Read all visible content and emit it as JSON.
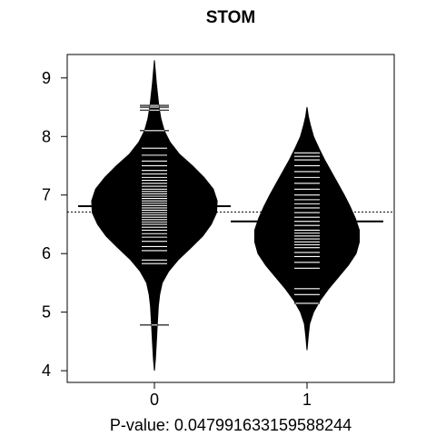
{
  "chart_data": {
    "type": "beanplot",
    "title": "STOM",
    "caption": "P-value: 0.047991633159588244",
    "xlabel": "",
    "ylabel": "",
    "ylim": [
      3.8,
      9.4
    ],
    "yticks": [
      4,
      5,
      6,
      7,
      8,
      9
    ],
    "grid": false,
    "overall_mean": 6.71,
    "groups": [
      {
        "category": "0",
        "mean": 6.81,
        "min": 4.0,
        "max": 9.3,
        "density": [
          [
            4.0,
            0.0
          ],
          [
            4.2,
            0.015
          ],
          [
            4.5,
            0.03
          ],
          [
            4.8,
            0.045
          ],
          [
            5.1,
            0.06
          ],
          [
            5.3,
            0.08
          ],
          [
            5.5,
            0.12
          ],
          [
            5.7,
            0.22
          ],
          [
            5.9,
            0.37
          ],
          [
            6.1,
            0.56
          ],
          [
            6.3,
            0.74
          ],
          [
            6.5,
            0.87
          ],
          [
            6.7,
            0.95
          ],
          [
            6.9,
            0.96
          ],
          [
            7.1,
            0.9
          ],
          [
            7.3,
            0.76
          ],
          [
            7.5,
            0.58
          ],
          [
            7.7,
            0.38
          ],
          [
            7.9,
            0.24
          ],
          [
            8.1,
            0.15
          ],
          [
            8.3,
            0.1
          ],
          [
            8.5,
            0.07
          ],
          [
            8.7,
            0.05
          ],
          [
            8.9,
            0.03
          ],
          [
            9.1,
            0.015
          ],
          [
            9.3,
            0.0
          ]
        ],
        "observations": [
          4.78,
          5.83,
          5.89,
          6.05,
          6.12,
          6.21,
          6.28,
          6.34,
          6.4,
          6.45,
          6.5,
          6.54,
          6.58,
          6.62,
          6.66,
          6.7,
          6.74,
          6.78,
          6.82,
          6.86,
          6.9,
          6.94,
          6.98,
          7.02,
          7.06,
          7.1,
          7.15,
          7.2,
          7.25,
          7.3,
          7.36,
          7.42,
          7.5,
          7.58,
          7.68,
          7.8,
          8.1,
          8.45,
          8.5,
          8.53
        ]
      },
      {
        "category": "1",
        "mean": 6.55,
        "min": 4.35,
        "max": 8.5,
        "density": [
          [
            4.35,
            0.0
          ],
          [
            4.6,
            0.02
          ],
          [
            4.8,
            0.04
          ],
          [
            5.0,
            0.1
          ],
          [
            5.2,
            0.2
          ],
          [
            5.4,
            0.33
          ],
          [
            5.6,
            0.48
          ],
          [
            5.8,
            0.63
          ],
          [
            6.0,
            0.75
          ],
          [
            6.2,
            0.8
          ],
          [
            6.4,
            0.8
          ],
          [
            6.6,
            0.74
          ],
          [
            6.8,
            0.66
          ],
          [
            7.0,
            0.57
          ],
          [
            7.2,
            0.47
          ],
          [
            7.4,
            0.37
          ],
          [
            7.6,
            0.27
          ],
          [
            7.8,
            0.18
          ],
          [
            8.0,
            0.1
          ],
          [
            8.2,
            0.05
          ],
          [
            8.35,
            0.02
          ],
          [
            8.5,
            0.0
          ]
        ],
        "observations": [
          5.15,
          5.3,
          5.4,
          5.75,
          5.85,
          5.95,
          6.02,
          6.1,
          6.15,
          6.2,
          6.25,
          6.3,
          6.35,
          6.4,
          6.48,
          6.55,
          6.62,
          6.7,
          6.78,
          6.85,
          6.92,
          7.0,
          7.1,
          7.2,
          7.3,
          7.4,
          7.5,
          7.6,
          7.66,
          7.72
        ]
      }
    ]
  }
}
